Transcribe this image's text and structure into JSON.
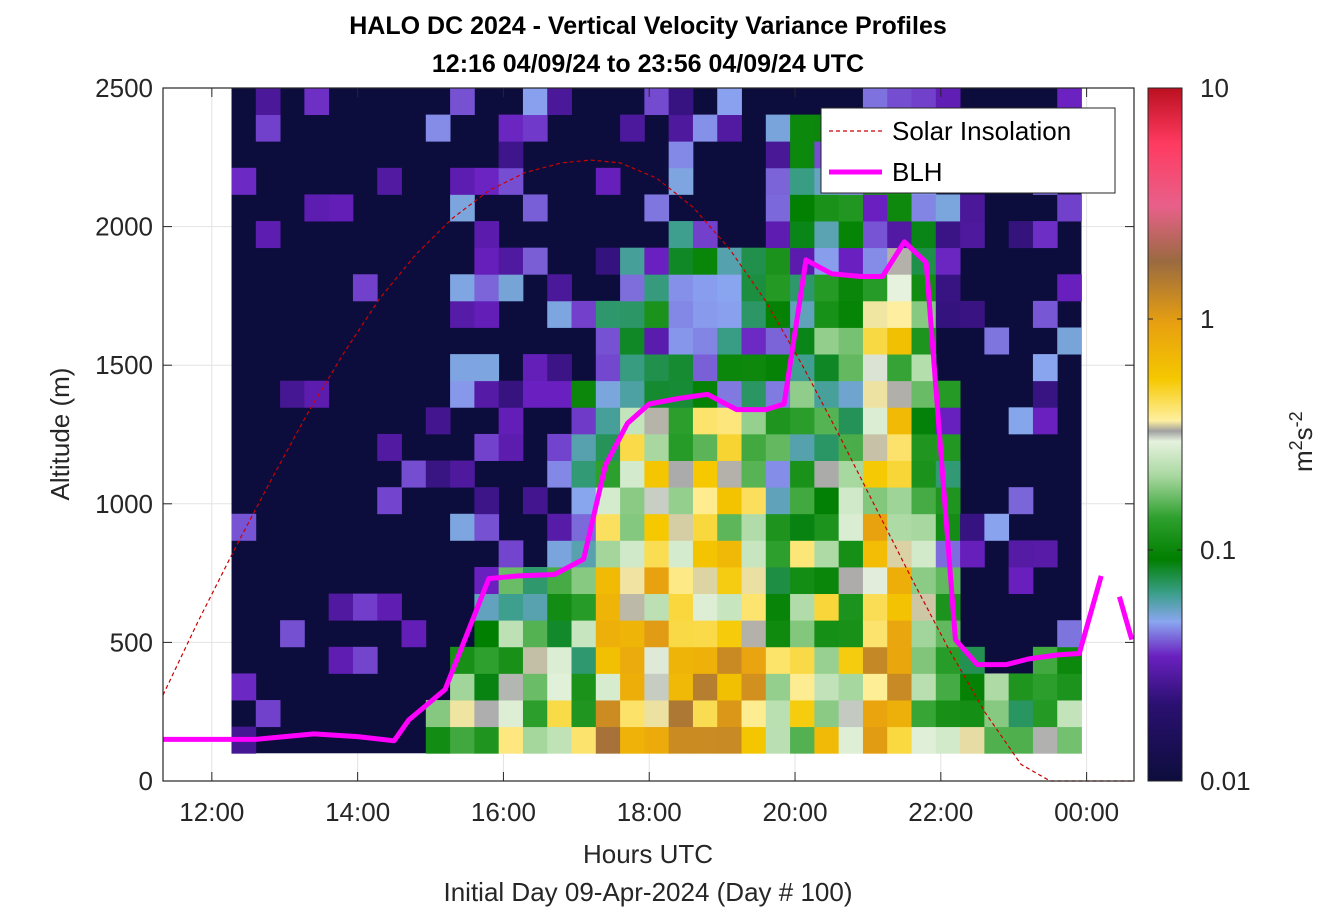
{
  "chart_data": {
    "type": "heatmap",
    "title": "HALO DC 2024 - Vertical Velocity Variance Profiles",
    "subtitle": "12:16 04/09/24 to 23:56 04/09/24  UTC",
    "xlabel": "Hours UTC",
    "xlabel2": "Initial Day 09-Apr-2024 (Day # 100)",
    "ylabel": "Altitude (m)",
    "xlim": [
      11.33,
      24.65
    ],
    "ylim": [
      0,
      2500
    ],
    "x_ticks": [
      12,
      14,
      16,
      18,
      20,
      22,
      24
    ],
    "x_tick_labels": [
      "12:00",
      "14:00",
      "16:00",
      "18:00",
      "20:00",
      "22:00",
      "00:00"
    ],
    "y_ticks": [
      0,
      500,
      1000,
      1500,
      2000,
      2500
    ],
    "y_tick_labels": [
      "0",
      "500",
      "1000",
      "1500",
      "2000",
      "2500"
    ],
    "grid": true,
    "legend_position": "top-right",
    "colorbar": {
      "scale": "log",
      "min": 0.01,
      "max": 10,
      "tick_values": [
        0.01,
        0.1,
        1,
        10
      ],
      "tick_labels": [
        "0.01",
        "0.1",
        "1",
        "10"
      ],
      "unit_base": "m",
      "unit_exp1": "2",
      "unit_mid": "s",
      "unit_exp2": "-2"
    },
    "heatmap": {
      "x_start": 12.27,
      "x_end": 23.93,
      "y_bottom": 100,
      "y_top": 2500,
      "n_cols": 35,
      "n_rows": 25
    },
    "series": [
      {
        "name": "Solar Insolation",
        "style": "dashed",
        "color": "#cc0000",
        "x": [
          11.33,
          11.8,
          12.3,
          12.8,
          13.3,
          13.8,
          14.3,
          14.8,
          15.3,
          15.8,
          16.3,
          16.8,
          17.2,
          17.6,
          18.1,
          18.6,
          19.1,
          19.6,
          20.1,
          20.6,
          21.1,
          21.6,
          22.1,
          22.6,
          23.1,
          23.5,
          23.8,
          24.65
        ],
        "y": [
          310,
          570,
          830,
          1080,
          1320,
          1540,
          1740,
          1900,
          2030,
          2130,
          2195,
          2230,
          2240,
          2230,
          2175,
          2070,
          1920,
          1730,
          1500,
          1250,
          990,
          730,
          480,
          250,
          60,
          0,
          0,
          0
        ]
      },
      {
        "name": "BLH",
        "style": "solid",
        "color": "#ff00ff",
        "x": [
          11.33,
          12.0,
          12.6,
          13.0,
          13.4,
          13.7,
          14.0,
          14.5,
          14.7,
          15.2,
          15.8,
          16.2,
          16.7,
          17.1,
          17.4,
          17.7,
          18.0,
          18.4,
          18.8,
          19.2,
          19.6,
          19.85,
          20.15,
          20.5,
          20.9,
          21.2,
          21.5,
          21.8,
          22.2,
          22.5,
          22.9,
          23.2,
          23.6,
          23.9,
          24.2
        ],
        "y": [
          150,
          150,
          150,
          160,
          170,
          165,
          160,
          145,
          220,
          330,
          730,
          740,
          745,
          800,
          1140,
          1290,
          1360,
          1380,
          1395,
          1340,
          1340,
          1360,
          1880,
          1830,
          1820,
          1820,
          1945,
          1870,
          510,
          420,
          420,
          440,
          455,
          460,
          740
        ]
      },
      {
        "name": "",
        "style": "solid",
        "color": "#ff00ff",
        "x": [
          24.45,
          24.62
        ],
        "y": [
          665,
          510
        ]
      }
    ]
  }
}
